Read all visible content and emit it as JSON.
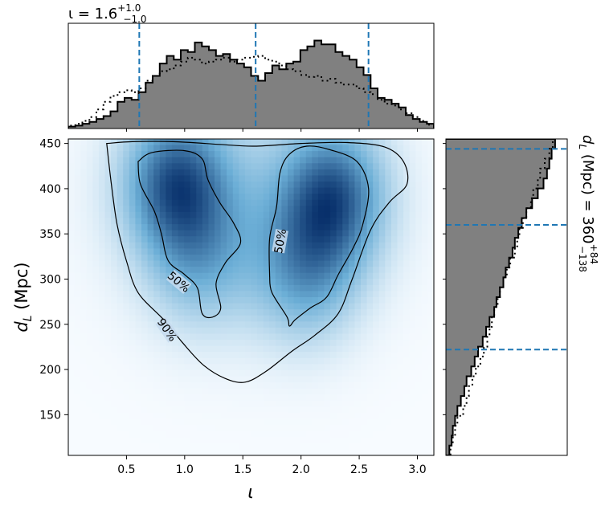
{
  "chart_data": {
    "type": "heatmap",
    "main": {
      "xlabel": "ι",
      "ylabel": "d_L (Mpc)",
      "xlim": [
        0.0,
        3.1416
      ],
      "ylim": [
        105,
        455
      ],
      "xticks": [
        0.5,
        1.0,
        1.5,
        2.0,
        2.5,
        3.0
      ],
      "xtick_labels": [
        "0.5",
        "1.0",
        "1.5",
        "2.0",
        "2.5",
        "3.0"
      ],
      "yticks": [
        150,
        200,
        250,
        300,
        350,
        400,
        450
      ],
      "ytick_labels": [
        "150",
        "200",
        "250",
        "300",
        "350",
        "400",
        "450"
      ],
      "colormap": "Blues",
      "density_peaks": [
        {
          "x": 0.92,
          "y": 408,
          "weight": 1.0
        },
        {
          "x": 2.28,
          "y": 392,
          "weight": 1.0
        },
        {
          "x": 2.05,
          "y": 305,
          "weight": 0.6
        },
        {
          "x": 1.12,
          "y": 320,
          "weight": 0.45
        }
      ],
      "contours": [
        {
          "label": "90%",
          "points": [
            [
              0.33,
              450
            ],
            [
              0.55,
              452
            ],
            [
              0.9,
              452
            ],
            [
              1.3,
              449
            ],
            [
              1.6,
              447
            ],
            [
              2.0,
              450
            ],
            [
              2.4,
              451
            ],
            [
              2.72,
              446
            ],
            [
              2.88,
              430
            ],
            [
              2.91,
              405
            ],
            [
              2.76,
              385
            ],
            [
              2.6,
              355
            ],
            [
              2.44,
              300
            ],
            [
              2.32,
              262
            ],
            [
              2.12,
              238
            ],
            [
              1.92,
              220
            ],
            [
              1.7,
              198
            ],
            [
              1.52,
              186
            ],
            [
              1.35,
              190
            ],
            [
              1.16,
              205
            ],
            [
              0.98,
              230
            ],
            [
              0.82,
              255
            ],
            [
              0.6,
              285
            ],
            [
              0.5,
              320
            ],
            [
              0.42,
              360
            ],
            [
              0.37,
              405
            ],
            [
              0.33,
              450
            ]
          ]
        },
        {
          "label": "50%",
          "points": [
            [
              0.6,
              430
            ],
            [
              0.72,
              440
            ],
            [
              1.0,
              442
            ],
            [
              1.15,
              433
            ],
            [
              1.2,
              410
            ],
            [
              1.3,
              385
            ],
            [
              1.42,
              362
            ],
            [
              1.48,
              340
            ],
            [
              1.35,
              318
            ],
            [
              1.27,
              295
            ],
            [
              1.31,
              268
            ],
            [
              1.24,
              258
            ],
            [
              1.15,
              262
            ],
            [
              1.11,
              290
            ],
            [
              1.0,
              305
            ],
            [
              0.86,
              320
            ],
            [
              0.8,
              350
            ],
            [
              0.74,
              375
            ],
            [
              0.62,
              405
            ],
            [
              0.6,
              430
            ]
          ]
        },
        {
          "label": "50%",
          "points": [
            [
              1.73,
              303
            ],
            [
              1.73,
              345
            ],
            [
              1.79,
              380
            ],
            [
              1.82,
              418
            ],
            [
              1.9,
              438
            ],
            [
              2.05,
              447
            ],
            [
              2.25,
              443
            ],
            [
              2.48,
              430
            ],
            [
              2.58,
              400
            ],
            [
              2.53,
              360
            ],
            [
              2.45,
              335
            ],
            [
              2.32,
              305
            ],
            [
              2.22,
              280
            ],
            [
              2.08,
              268
            ],
            [
              1.95,
              255
            ],
            [
              1.9,
              248
            ],
            [
              1.88,
              258
            ],
            [
              1.75,
              285
            ],
            [
              1.73,
              303
            ]
          ]
        }
      ],
      "contour_labels": [
        {
          "text": "50%",
          "x": 1.82,
          "y": 342
        },
        {
          "text": "50%",
          "x": 0.95,
          "y": 297
        },
        {
          "text": "90%",
          "x": 0.85,
          "y": 244
        }
      ]
    },
    "top_hist": {
      "title": "ι = 1.6^{+1.0}_{-1.0}",
      "title_main": "ι = 1.6",
      "title_sup": "+1.0",
      "title_sub": "−1.0",
      "median": 1.61,
      "lower": 0.61,
      "upper": 2.58,
      "solid_heights": [
        0.02,
        0.03,
        0.05,
        0.07,
        0.1,
        0.13,
        0.18,
        0.28,
        0.32,
        0.3,
        0.38,
        0.48,
        0.55,
        0.68,
        0.76,
        0.72,
        0.82,
        0.8,
        0.9,
        0.86,
        0.82,
        0.76,
        0.78,
        0.72,
        0.68,
        0.64,
        0.55,
        0.5,
        0.58,
        0.66,
        0.62,
        0.68,
        0.7,
        0.82,
        0.86,
        0.92,
        0.88,
        0.88,
        0.8,
        0.76,
        0.72,
        0.64,
        0.56,
        0.42,
        0.32,
        0.3,
        0.26,
        0.22,
        0.14,
        0.1,
        0.07,
        0.05
      ],
      "dotted_heights": [
        0.03,
        0.05,
        0.08,
        0.12,
        0.2,
        0.28,
        0.34,
        0.38,
        0.4,
        0.38,
        0.42,
        0.5,
        0.55,
        0.6,
        0.62,
        0.66,
        0.7,
        0.74,
        0.72,
        0.68,
        0.7,
        0.72,
        0.74,
        0.7,
        0.72,
        0.74,
        0.75,
        0.76,
        0.72,
        0.7,
        0.66,
        0.62,
        0.6,
        0.56,
        0.54,
        0.55,
        0.5,
        0.52,
        0.48,
        0.46,
        0.46,
        0.42,
        0.38,
        0.36,
        0.3,
        0.26,
        0.24,
        0.2,
        0.16,
        0.12,
        0.08,
        0.04
      ],
      "ymax": 1.0
    },
    "right_hist": {
      "label": "d_L (Mpc) = 360^{+84}_{-138}",
      "label_main": "d_L (Mpc) = 360",
      "label_sup": "+84",
      "label_sub": "−138",
      "median": 360,
      "lower": 222,
      "upper": 444,
      "solid_widths": [
        0.03,
        0.05,
        0.06,
        0.08,
        0.1,
        0.13,
        0.16,
        0.18,
        0.22,
        0.25,
        0.28,
        0.32,
        0.35,
        0.38,
        0.42,
        0.44,
        0.47,
        0.5,
        0.52,
        0.55,
        0.58,
        0.6,
        0.63,
        0.66,
        0.7,
        0.75,
        0.8,
        0.85,
        0.88,
        0.9,
        0.92,
        0.95
      ],
      "dotted_widths": [
        0.04,
        0.06,
        0.08,
        0.1,
        0.15,
        0.18,
        0.2,
        0.23,
        0.26,
        0.3,
        0.33,
        0.36,
        0.38,
        0.4,
        0.42,
        0.45,
        0.47,
        0.5,
        0.53,
        0.56,
        0.6,
        0.62,
        0.64,
        0.67,
        0.7,
        0.74,
        0.76,
        0.8,
        0.82,
        0.86,
        0.9,
        0.93
      ],
      "xmax": 1.0
    }
  }
}
